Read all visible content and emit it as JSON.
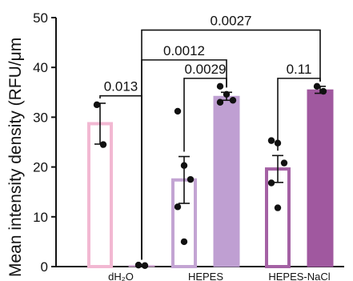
{
  "chart_data": {
    "type": "bar",
    "title": "",
    "xlabel": "",
    "ylabel": "Mean intensity density (RFU/μm",
    "ylim": [
      0,
      50
    ],
    "yticks": [
      "0",
      "10",
      "20",
      "30",
      "40",
      "50"
    ],
    "grid": false,
    "group_labels": [
      "dH₂O",
      "HEPES",
      "HEPES-NaCl"
    ],
    "bars": [
      {
        "group": "dH₂O",
        "mean": 28.7,
        "sem": 4.1,
        "fill": "none",
        "color": "#f2b8d2",
        "points": [
          32.5,
          24.5
        ]
      },
      {
        "group": "dH₂O",
        "mean": 0.2,
        "sem": 0.2,
        "fill": "solid",
        "color": "#cfa4d1",
        "points": [
          0.3,
          0.2
        ]
      },
      {
        "group": "HEPES",
        "mean": 17.4,
        "sem": 4.7,
        "fill": "none",
        "color": "#c3a4d3",
        "points": [
          31.2,
          20.3,
          17.5,
          12.0,
          5.0
        ]
      },
      {
        "group": "HEPES",
        "mean": 34.2,
        "sem": 0.8,
        "fill": "solid",
        "color": "#bf9fd2",
        "points": [
          36.2,
          34.6,
          33.4,
          33.0
        ]
      },
      {
        "group": "HEPES-NaCl",
        "mean": 19.6,
        "sem": 2.7,
        "fill": "none",
        "color": "#a461a4",
        "points": [
          25.3,
          24.8,
          20.8,
          16.8,
          11.8
        ]
      },
      {
        "group": "HEPES-NaCl",
        "mean": 35.5,
        "sem": 0.7,
        "fill": "solid",
        "color": "#a0589f",
        "points": [
          36.2,
          35.2
        ]
      }
    ],
    "annotations": [
      {
        "label": "0.0027",
        "from_bar": 1,
        "to_bar": 5,
        "y": 47.5
      },
      {
        "label": "0.0012",
        "from_bar": 1,
        "to_bar": 3,
        "y": 41.5
      },
      {
        "label": "0.0029",
        "from_bar": 2,
        "to_bar": 3,
        "y": 37.8
      },
      {
        "label": "0.11",
        "from_bar": 4,
        "to_bar": 5,
        "y": 37.8
      },
      {
        "label": "0.013",
        "from_bar": 0,
        "to_bar": 1,
        "y": 34.3
      }
    ]
  }
}
